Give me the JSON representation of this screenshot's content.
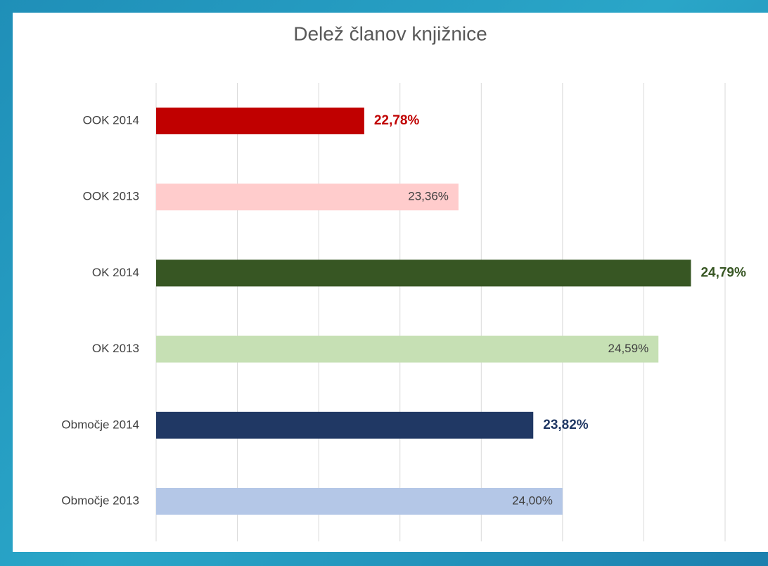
{
  "chart_data": {
    "type": "barh",
    "title": "Delež članov knjižnice",
    "categories": [
      "OOK 2014",
      "OOK 2013",
      "OK 2014",
      "OK 2013",
      "Območje 2014",
      "Območje 2013"
    ],
    "values": [
      22.78,
      23.36,
      24.79,
      24.59,
      23.82,
      24.0
    ],
    "value_labels": [
      "22,78%",
      "23,36%",
      "24,79%",
      "24,59%",
      "23,82%",
      "24,00%"
    ],
    "colors": [
      "#c00000",
      "#ffcccc",
      "#375623",
      "#c6e0b4",
      "#203864",
      "#b4c7e7"
    ],
    "label_positions": [
      "outside",
      "inside",
      "outside",
      "inside",
      "outside",
      "inside"
    ],
    "xlim": [
      21.5,
      25
    ],
    "xticks": [
      21.5,
      22,
      22.5,
      23,
      23.5,
      24,
      24.5,
      25
    ],
    "grid": true
  }
}
